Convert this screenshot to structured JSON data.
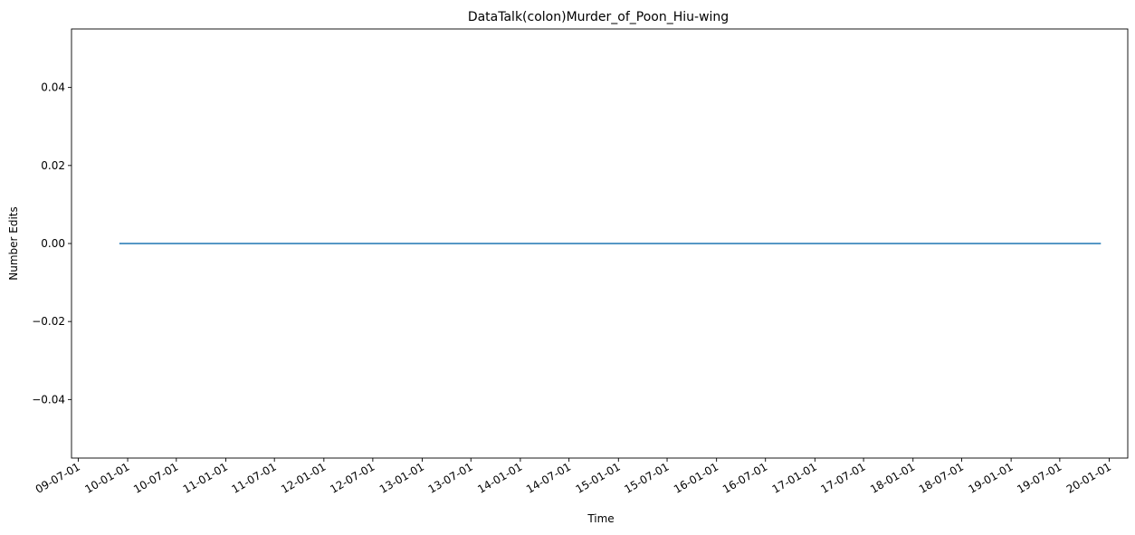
{
  "chart_data": {
    "type": "line",
    "title": "DataTalk(colon)Murder_of_Poon_Hiu-wing",
    "xlabel": "Time",
    "ylabel": "Number Edits",
    "xlim": [
      "2009-06-06",
      "2020-03-10"
    ],
    "ylim": [
      -0.055,
      0.055
    ],
    "y_ticks": [
      -0.04,
      -0.02,
      0.0,
      0.02,
      0.04
    ],
    "y_tick_labels": [
      "−0.04",
      "−0.02",
      "0.00",
      "0.02",
      "0.04"
    ],
    "x_ticks": [
      "2009-07-01",
      "2010-01-01",
      "2010-07-01",
      "2011-01-01",
      "2011-07-01",
      "2012-01-01",
      "2012-07-01",
      "2013-01-01",
      "2013-07-01",
      "2014-01-01",
      "2014-07-01",
      "2015-01-01",
      "2015-07-01",
      "2016-01-01",
      "2016-07-01",
      "2017-01-01",
      "2017-07-01",
      "2018-01-01",
      "2018-07-01",
      "2019-01-01",
      "2019-07-01",
      "2020-01-01"
    ],
    "x_tick_labels": [
      "09-07-01",
      "10-01-01",
      "10-07-01",
      "11-01-01",
      "11-07-01",
      "12-01-01",
      "12-07-01",
      "13-01-01",
      "13-07-01",
      "14-01-01",
      "14-07-01",
      "15-01-01",
      "15-07-01",
      "16-01-01",
      "16-07-01",
      "17-01-01",
      "17-07-01",
      "18-01-01",
      "18-07-01",
      "19-01-01",
      "19-07-01",
      "20-01-01"
    ],
    "grid": false,
    "series": [
      {
        "color": "#1f77b4",
        "x": [
          "2009-12-01",
          "2019-12-01"
        ],
        "y": [
          0,
          0
        ]
      }
    ]
  }
}
